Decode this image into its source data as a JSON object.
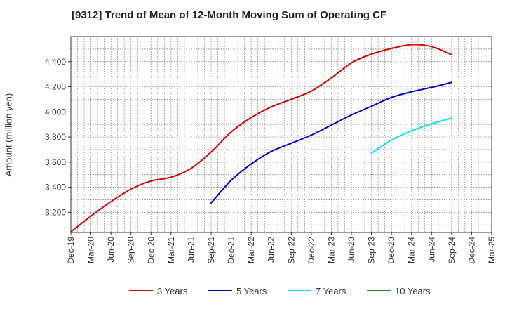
{
  "chart_data": {
    "type": "line",
    "title": "[9312]  Trend of Mean of 12-Month Moving Sum of Operating CF",
    "xlabel": "",
    "ylabel": "Amount (million yen)",
    "ylim": [
      3040,
      4600
    ],
    "x_range": [
      "Dec-19",
      "Mar-25"
    ],
    "y_ticks": [
      3200,
      3400,
      3600,
      3800,
      4000,
      4200,
      4400
    ],
    "y_tick_labels": [
      "3,200",
      "3,400",
      "3,600",
      "3,800",
      "4,000",
      "4,200",
      "4,400"
    ],
    "x_tick_labels": [
      "Dec-19",
      "Mar-20",
      "Jun-20",
      "Sep-20",
      "Dec-20",
      "Mar-21",
      "Jun-21",
      "Sep-21",
      "Dec-21",
      "Mar-22",
      "Jun-22",
      "Sep-22",
      "Dec-22",
      "Mar-23",
      "Jun-23",
      "Sep-23",
      "Dec-23",
      "Mar-24",
      "Jun-24",
      "Sep-24",
      "Dec-24",
      "Mar-25"
    ],
    "grid": true,
    "legend_position": "bottom",
    "series": [
      {
        "name": "3 Years",
        "color": "#dd0000",
        "points": [
          [
            "Dec-19",
            3045
          ],
          [
            "Mar-20",
            3170
          ],
          [
            "Jun-20",
            3285
          ],
          [
            "Sep-20",
            3385
          ],
          [
            "Dec-20",
            3450
          ],
          [
            "Mar-21",
            3480
          ],
          [
            "Jun-21",
            3550
          ],
          [
            "Sep-21",
            3680
          ],
          [
            "Dec-21",
            3840
          ],
          [
            "Mar-22",
            3955
          ],
          [
            "Jun-22",
            4040
          ],
          [
            "Sep-22",
            4100
          ],
          [
            "Dec-22",
            4165
          ],
          [
            "Mar-23",
            4270
          ],
          [
            "Jun-23",
            4390
          ],
          [
            "Sep-23",
            4460
          ],
          [
            "Dec-23",
            4505
          ],
          [
            "Mar-24",
            4535
          ],
          [
            "Jun-24",
            4520
          ],
          [
            "Sep-24",
            4455
          ]
        ]
      },
      {
        "name": "5 Years",
        "color": "#0000cc",
        "points": [
          [
            "Sep-21",
            3275
          ],
          [
            "Dec-21",
            3455
          ],
          [
            "Mar-22",
            3585
          ],
          [
            "Jun-22",
            3685
          ],
          [
            "Sep-22",
            3750
          ],
          [
            "Dec-22",
            3815
          ],
          [
            "Mar-23",
            3895
          ],
          [
            "Jun-23",
            3975
          ],
          [
            "Sep-23",
            4045
          ],
          [
            "Dec-23",
            4115
          ],
          [
            "Mar-24",
            4160
          ],
          [
            "Jun-24",
            4195
          ],
          [
            "Sep-24",
            4235
          ]
        ]
      },
      {
        "name": "7 Years",
        "color": "#00e5ee",
        "points": [
          [
            "Sep-23",
            3670
          ],
          [
            "Dec-23",
            3775
          ],
          [
            "Mar-24",
            3850
          ],
          [
            "Jun-24",
            3905
          ],
          [
            "Sep-24",
            3950
          ]
        ]
      },
      {
        "name": "10 Years",
        "color": "#228b22",
        "points": []
      }
    ]
  }
}
